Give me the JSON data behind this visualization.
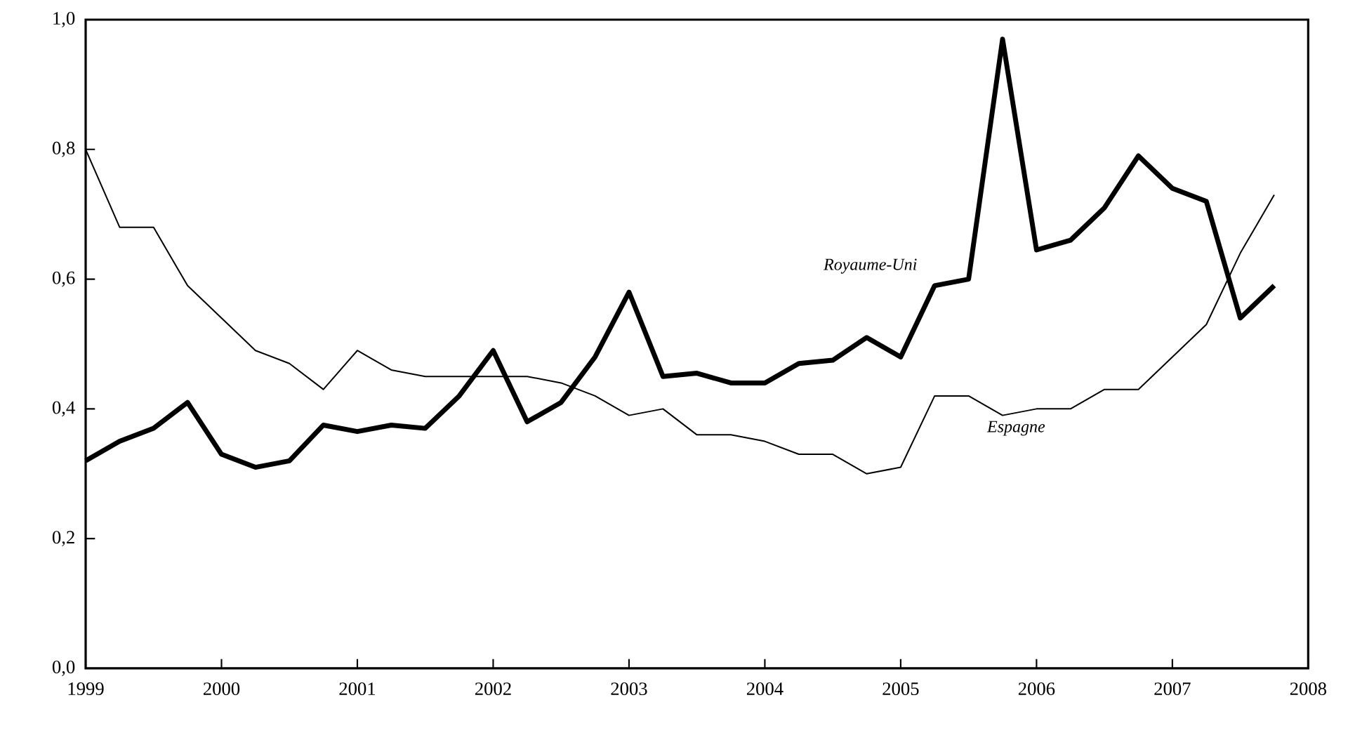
{
  "chart_data": {
    "type": "line",
    "x": [
      1999,
      1999.25,
      1999.5,
      1999.75,
      2000,
      2000.25,
      2000.5,
      2000.75,
      2001,
      2001.25,
      2001.5,
      2001.75,
      2002,
      2002.25,
      2002.5,
      2002.75,
      2003,
      2003.25,
      2003.5,
      2003.75,
      2004,
      2004.25,
      2004.5,
      2004.75,
      2005,
      2005.25,
      2005.5,
      2005.75,
      2006,
      2006.25,
      2006.5,
      2006.75,
      2007,
      2007.25,
      2007.5,
      2007.75
    ],
    "series": [
      {
        "name": "Royaume-Uni",
        "color": "#000000",
        "values": [
          0.32,
          0.35,
          0.37,
          0.41,
          0.33,
          0.31,
          0.32,
          0.375,
          0.365,
          0.375,
          0.37,
          0.42,
          0.49,
          0.38,
          0.41,
          0.48,
          0.58,
          0.45,
          0.455,
          0.44,
          0.44,
          0.47,
          0.475,
          0.51,
          0.48,
          0.59,
          0.6,
          0.97,
          0.645,
          0.66,
          0.71,
          0.79,
          0.74,
          0.72,
          0.54,
          0.59
        ]
      },
      {
        "name": "Espagne",
        "color": "#000000",
        "values": [
          0.8,
          0.68,
          0.68,
          0.59,
          0.54,
          0.49,
          0.47,
          0.43,
          0.49,
          0.46,
          0.45,
          0.45,
          0.45,
          0.45,
          0.44,
          0.42,
          0.39,
          0.4,
          0.36,
          0.36,
          0.35,
          0.33,
          0.33,
          0.3,
          0.31,
          0.42,
          0.42,
          0.39,
          0.4,
          0.4,
          0.43,
          0.43,
          0.48,
          0.53,
          0.64,
          0.73
        ]
      }
    ],
    "xlim": [
      1999,
      2008
    ],
    "xticks": [
      1999,
      2000,
      2001,
      2002,
      2003,
      2004,
      2005,
      2006,
      2007,
      2008
    ],
    "ylim": [
      0,
      1
    ],
    "yticks": [
      {
        "value": 0,
        "label": "0,0"
      },
      {
        "value": 0.2,
        "label": "0,2"
      },
      {
        "value": 0.4,
        "label": "0,4"
      },
      {
        "value": 0.6,
        "label": "0,6"
      },
      {
        "value": 0.8,
        "label": "0,8"
      },
      {
        "value": 1,
        "label": "1,0"
      }
    ],
    "grid": false,
    "legend": false,
    "marker": "none",
    "line_style": "solid"
  }
}
